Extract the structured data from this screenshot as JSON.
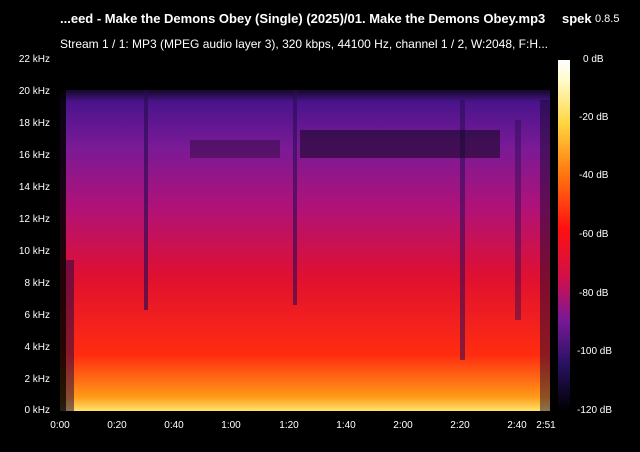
{
  "header": {
    "title": "...eed - Make the Demons Obey (Single) (2025)/01. Make the Demons Obey.mp3",
    "app_name": "spek",
    "app_version": "0.8.5",
    "stream_info": "Stream 1 / 1: MP3 (MPEG audio layer 3), 320 kbps, 44100 Hz, channel 1 / 2, W:2048, F:H..."
  },
  "axes": {
    "frequency_ticks": [
      "22 kHz",
      "20 kHz",
      "18 kHz",
      "16 kHz",
      "14 kHz",
      "12 kHz",
      "10 kHz",
      "8 kHz",
      "6 kHz",
      "4 kHz",
      "2 kHz",
      "0 kHz"
    ],
    "time_ticks": [
      "0:00",
      "0:20",
      "0:40",
      "1:00",
      "1:20",
      "1:40",
      "2:00",
      "2:20",
      "2:40",
      "2:51"
    ],
    "db_ticks": [
      "0 dB",
      "-20 dB",
      "-40 dB",
      "-60 dB",
      "-80 dB",
      "-100 dB",
      "-120 dB"
    ]
  },
  "colors": {
    "background": "#000000",
    "text": "#ffffff"
  }
}
